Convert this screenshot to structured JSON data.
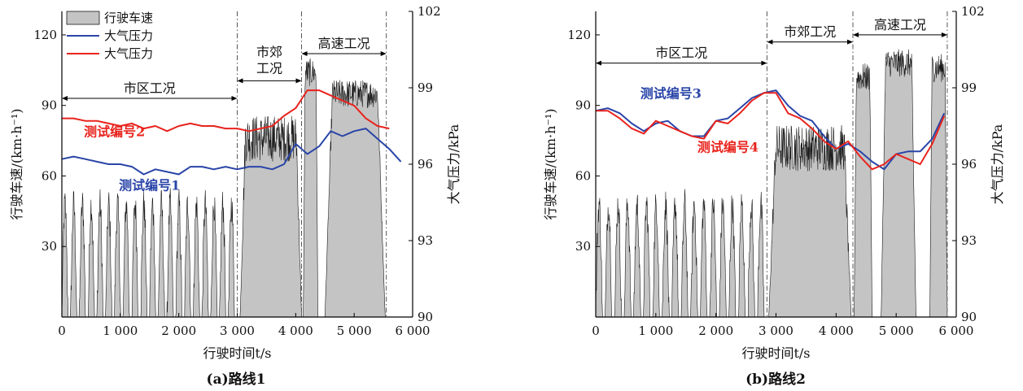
{
  "colors": {
    "speed_fill": "#c4c4c4",
    "speed_line": "#1a1a1a",
    "pressure_blue": "#2a45a8",
    "pressure_red": "#e8231d",
    "axis": "#000000",
    "divider": "#555555"
  },
  "legend": [
    {
      "label": "行驶车速",
      "kind": "area"
    },
    {
      "label": "大气压力",
      "kind": "line",
      "color": "#2a45a8"
    },
    {
      "label": "大气压力",
      "kind": "line",
      "color": "#e8231d"
    }
  ],
  "chart_data": [
    {
      "type": "area",
      "caption": "(a)路线1",
      "xlabel": "行驶时间t/s",
      "ylabel": "行驶车速/(km·h⁻¹)",
      "ylabel_right": "大气压力/kPa",
      "xlim": [
        0,
        6000
      ],
      "ylim": [
        0,
        130
      ],
      "ylim_right": [
        90,
        102
      ],
      "x_ticks": [
        {
          "v": 0,
          "label": "0"
        },
        {
          "v": 1000,
          "label": "1 000"
        },
        {
          "v": 2000,
          "label": "2 000"
        },
        {
          "v": 3000,
          "label": "3 000"
        },
        {
          "v": 4000,
          "label": "4 000"
        },
        {
          "v": 5000,
          "label": "5 000"
        },
        {
          "v": 6000,
          "label": "6 000"
        }
      ],
      "y_ticks": [
        {
          "v": 30,
          "label": "30"
        },
        {
          "v": 60,
          "label": "60"
        },
        {
          "v": 90,
          "label": "90"
        },
        {
          "v": 120,
          "label": "120"
        }
      ],
      "y_ticks_right": [
        {
          "v": 90,
          "label": "90"
        },
        {
          "v": 93,
          "label": "93"
        },
        {
          "v": 96,
          "label": "96"
        },
        {
          "v": 99,
          "label": "99"
        },
        {
          "v": 102,
          "label": "102"
        }
      ],
      "regions": [
        {
          "label": "市区工况",
          "x0": 0,
          "x1": 3000,
          "y": 93
        },
        {
          "label": "市郊\n工况",
          "x0": 3000,
          "x1": 4100,
          "y": 100.5
        },
        {
          "label": "高速工况",
          "x0": 4100,
          "x1": 5550,
          "y": 112
        }
      ],
      "dividers": [
        3000,
        4100,
        5550
      ],
      "speed_segments": [
        {
          "kind": "city",
          "x0": 0,
          "x1": 3000,
          "trips": 20
        },
        {
          "kind": "suburb",
          "x0": 3050,
          "x1": 4100,
          "level": 76
        },
        {
          "kind": "highway",
          "x0": 4130,
          "x1": 4380,
          "level": 104
        },
        {
          "kind": "highway",
          "x0": 4500,
          "x1": 5530,
          "level": 95
        }
      ],
      "series": [
        {
          "label": "测试编号1",
          "color": "#2a45a8",
          "x": [
            0,
            200,
            400,
            600,
            800,
            1000,
            1200,
            1400,
            1600,
            1800,
            2000,
            2200,
            2400,
            2600,
            2800,
            3000,
            3200,
            3400,
            3600,
            3800,
            4000,
            4200,
            4400,
            4600,
            4800,
            5000,
            5200,
            5400,
            5600,
            5800
          ],
          "y": [
            96.2,
            96.3,
            96.2,
            96.1,
            96.0,
            96.0,
            95.9,
            95.6,
            95.8,
            95.7,
            95.6,
            95.9,
            95.9,
            95.8,
            95.9,
            95.8,
            95.9,
            95.9,
            95.8,
            96.0,
            96.8,
            96.4,
            96.7,
            97.3,
            97.1,
            97.3,
            97.4,
            97.0,
            96.6,
            96.1
          ]
        },
        {
          "label": "测试编号2",
          "color": "#e8231d",
          "x": [
            0,
            200,
            400,
            600,
            800,
            1000,
            1200,
            1400,
            1600,
            1800,
            2000,
            2200,
            2400,
            2600,
            2800,
            3000,
            3200,
            3400,
            3600,
            3800,
            4000,
            4200,
            4400,
            4600,
            4800,
            5000,
            5200,
            5400,
            5600
          ],
          "y": [
            97.8,
            97.8,
            97.7,
            97.7,
            97.6,
            97.5,
            97.6,
            97.4,
            97.5,
            97.3,
            97.5,
            97.6,
            97.5,
            97.5,
            97.4,
            97.4,
            97.3,
            97.4,
            97.5,
            97.9,
            98.2,
            98.9,
            98.9,
            98.7,
            98.5,
            98.3,
            97.8,
            97.5,
            97.4
          ]
        }
      ],
      "labels": [
        {
          "text": "测试编号2",
          "color": "#e8231d",
          "x": 900,
          "y": 97.1
        },
        {
          "text": "测试编号1",
          "color": "#2a45a8",
          "x": 1500,
          "y": 95.0
        }
      ]
    },
    {
      "type": "area",
      "caption": "(b)路线2",
      "xlabel": "行驶时间t/s",
      "ylabel": "行驶车速/(km·h⁻¹)",
      "ylabel_right": "大气压力/kPa",
      "xlim": [
        0,
        6000
      ],
      "ylim": [
        0,
        130
      ],
      "ylim_right": [
        90,
        102
      ],
      "x_ticks": [
        {
          "v": 0,
          "label": "0"
        },
        {
          "v": 1000,
          "label": "1 000"
        },
        {
          "v": 2000,
          "label": "2 000"
        },
        {
          "v": 3000,
          "label": "3 000"
        },
        {
          "v": 4000,
          "label": "4 000"
        },
        {
          "v": 5000,
          "label": "5 000"
        },
        {
          "v": 6000,
          "label": "6 000"
        }
      ],
      "y_ticks": [
        {
          "v": 30,
          "label": "30"
        },
        {
          "v": 60,
          "label": "60"
        },
        {
          "v": 90,
          "label": "90"
        },
        {
          "v": 120,
          "label": "120"
        }
      ],
      "y_ticks_right": [
        {
          "v": 90,
          "label": "90"
        },
        {
          "v": 93,
          "label": "93"
        },
        {
          "v": 96,
          "label": "96"
        },
        {
          "v": 99,
          "label": "99"
        },
        {
          "v": 102,
          "label": "102"
        }
      ],
      "regions": [
        {
          "label": "市区工况",
          "x0": 0,
          "x1": 2850,
          "y": 108
        },
        {
          "label": "市郊工况",
          "x0": 2850,
          "x1": 4280,
          "y": 117
        },
        {
          "label": "高速工况",
          "x0": 4280,
          "x1": 5850,
          "y": 120
        }
      ],
      "dividers": [
        2850,
        4280,
        5850
      ],
      "speed_segments": [
        {
          "kind": "city",
          "x0": 0,
          "x1": 2850,
          "trips": 18
        },
        {
          "kind": "suburb",
          "x0": 2880,
          "x1": 4250,
          "level": 72
        },
        {
          "kind": "highway",
          "x0": 4300,
          "x1": 4600,
          "level": 102
        },
        {
          "kind": "highway",
          "x0": 4750,
          "x1": 5330,
          "level": 108
        },
        {
          "kind": "highway",
          "x0": 5560,
          "x1": 5850,
          "level": 106
        }
      ],
      "series": [
        {
          "label": "测试编号3",
          "color": "#2a45a8",
          "x": [
            0,
            200,
            400,
            600,
            800,
            1000,
            1200,
            1400,
            1600,
            1800,
            2000,
            2200,
            2400,
            2600,
            2800,
            3000,
            3200,
            3400,
            3600,
            3800,
            4000,
            4200,
            4400,
            4600,
            4800,
            5000,
            5200,
            5400,
            5600,
            5800
          ],
          "y": [
            98.1,
            98.2,
            98.0,
            97.6,
            97.3,
            97.6,
            97.7,
            97.3,
            97.1,
            97.1,
            97.7,
            97.8,
            98.2,
            98.6,
            98.8,
            98.9,
            98.3,
            97.9,
            97.7,
            97.1,
            96.6,
            96.8,
            96.5,
            96.1,
            95.8,
            96.4,
            96.5,
            96.5,
            97.0,
            98.0
          ]
        },
        {
          "label": "测试编号4",
          "color": "#e8231d",
          "x": [
            0,
            200,
            400,
            600,
            800,
            1000,
            1200,
            1400,
            1600,
            1800,
            2000,
            2200,
            2400,
            2600,
            2800,
            3000,
            3200,
            3400,
            3600,
            3800,
            4000,
            4200,
            4400,
            4600,
            4800,
            5000,
            5200,
            5400,
            5600,
            5800
          ],
          "y": [
            98.1,
            98.1,
            97.8,
            97.4,
            97.2,
            97.7,
            97.5,
            97.3,
            97.1,
            97.0,
            97.7,
            97.6,
            98.0,
            98.5,
            98.8,
            98.8,
            98.0,
            97.8,
            97.4,
            96.9,
            96.6,
            96.9,
            96.3,
            95.8,
            96.0,
            96.4,
            96.2,
            96.0,
            96.8,
            97.9
          ]
        }
      ],
      "labels": [
        {
          "text": "测试编号3",
          "color": "#2a45a8",
          "x": 1250,
          "y": 98.6
        },
        {
          "text": "测试编号4",
          "color": "#e8231d",
          "x": 2200,
          "y": 96.5
        }
      ]
    }
  ]
}
